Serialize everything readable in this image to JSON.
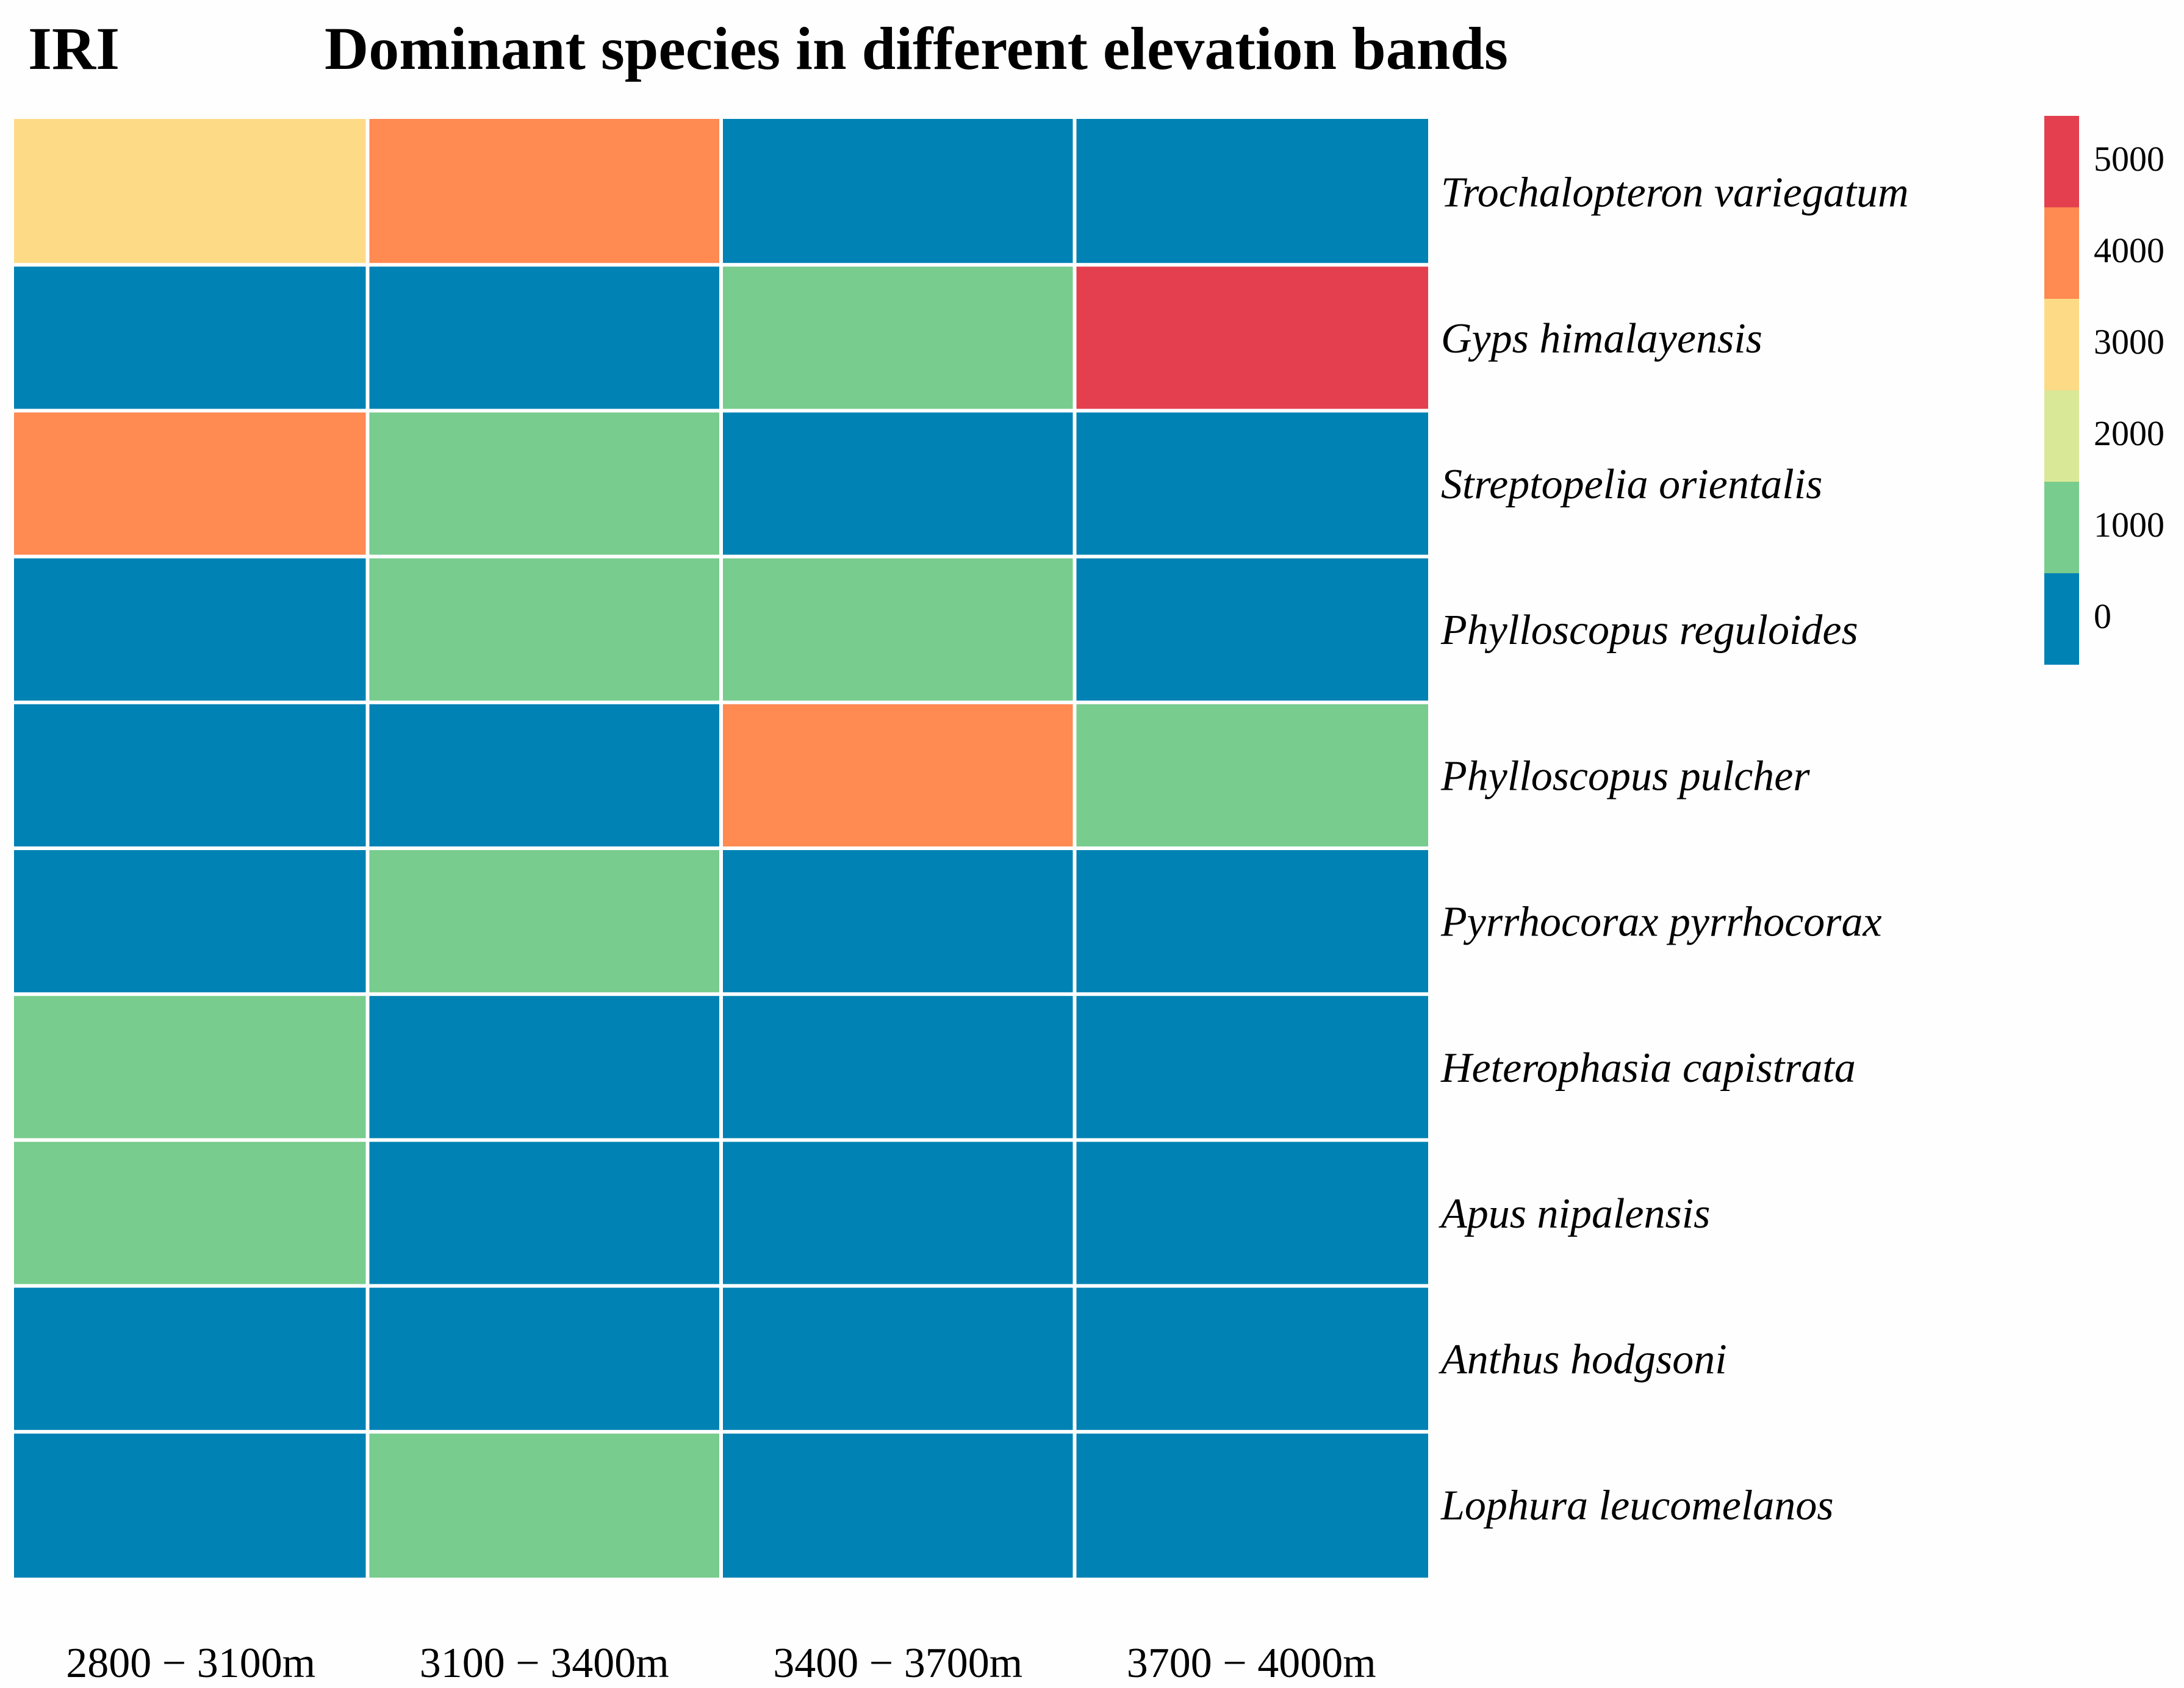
{
  "chart_data": {
    "type": "heatmap",
    "panel_label": "IRI",
    "title": "Dominant species in different elevation bands",
    "x_categories": [
      "2800 − 3100m",
      "3100 − 3400m",
      "3400 − 3700m",
      "3700 − 4000m"
    ],
    "y_categories": [
      "Trochalopteron variegatum",
      "Gyps himalayensis",
      "Streptopelia orientalis",
      "Phylloscopus reguloides",
      "Phylloscopus pulcher",
      "Pyrrhocorax pyrrhocorax",
      "Heterophasia capistrata",
      "Apus nipalensis",
      "Anthus hodgsoni",
      "Lophura leucomelanos"
    ],
    "values": [
      [
        3000,
        4000,
        0,
        0
      ],
      [
        0,
        0,
        1000,
        5000
      ],
      [
        4000,
        1000,
        0,
        0
      ],
      [
        0,
        1000,
        1000,
        0
      ],
      [
        0,
        0,
        4000,
        1000
      ],
      [
        0,
        1000,
        0,
        0
      ],
      [
        1000,
        0,
        0,
        0
      ],
      [
        1000,
        0,
        0,
        0
      ],
      [
        0,
        0,
        0,
        0
      ],
      [
        0,
        1000,
        0,
        0
      ]
    ],
    "legend": {
      "placement": "top-right",
      "ticks": [
        5000,
        4000,
        3000,
        2000,
        1000,
        0
      ],
      "tick_labels": [
        "5000",
        "4000",
        "3000",
        "2000",
        "1000",
        "0"
      ],
      "colors": {
        "5000": "#e43f4e",
        "4000": "#ff8a52",
        "3000": "#fddb86",
        "2000": "#d9e897",
        "1000": "#78cc8d",
        "0": "#0082b4"
      }
    }
  }
}
